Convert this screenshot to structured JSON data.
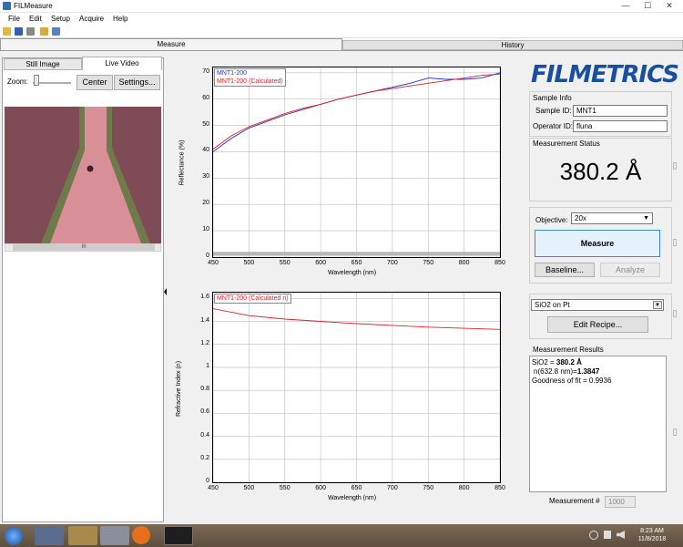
{
  "window": {
    "title": "FILMeasure",
    "controls": [
      "—",
      "☐",
      "✕"
    ]
  },
  "menu": [
    "File",
    "Edit",
    "Setup",
    "Acquire",
    "Help"
  ],
  "tabs": {
    "measure": "Measure",
    "history": "History"
  },
  "left_panel": {
    "tabs": {
      "still": "Still Image",
      "live": "Live Video"
    },
    "zoom_label": "Zoom:",
    "center_button": "Center",
    "settings_button": "Settings...",
    "scroll_grip": "III"
  },
  "charts": {
    "x_ticks": [
      "450",
      "500",
      "550",
      "600",
      "650",
      "700",
      "750",
      "800",
      "850"
    ],
    "reflectance": {
      "legend": [
        "MNT1-200",
        "MNT1-200 (Calculated)"
      ],
      "y_ticks": [
        "70",
        "60",
        "50",
        "40",
        "30",
        "20",
        "10",
        "0"
      ],
      "ylabel": "Reflectance (%)",
      "xlabel": "Wavelength (nm)"
    },
    "index": {
      "legend": [
        "MNT1-200 (Calculated n)"
      ],
      "y_ticks": [
        "1.6",
        "1.4",
        "1.2",
        "1",
        "0.8",
        "0.6",
        "0.4",
        "0.2",
        "0"
      ],
      "ylabel": "Refractive Index (n)",
      "xlabel": "Wavelength (nm)"
    }
  },
  "chart_data": [
    {
      "type": "line",
      "xlabel": "Wavelength (nm)",
      "ylabel": "Reflectance (%)",
      "xlim": [
        450,
        850
      ],
      "ylim": [
        0,
        72
      ],
      "grid": true,
      "legend_position": "top-left",
      "series": [
        {
          "name": "MNT1-200",
          "color": "#1f2fd6",
          "x": [
            450,
            475,
            500,
            525,
            550,
            575,
            600,
            625,
            650,
            675,
            700,
            725,
            750,
            775,
            800,
            825,
            850
          ],
          "y": [
            40,
            45,
            49,
            51.5,
            54,
            56,
            58,
            60,
            61.5,
            63,
            64.5,
            66,
            68,
            67.5,
            67.5,
            68,
            70
          ]
        },
        {
          "name": "MNT1-200 (Calculated)",
          "color": "#e0202a",
          "x": [
            450,
            475,
            500,
            525,
            550,
            575,
            600,
            625,
            650,
            675,
            700,
            725,
            750,
            775,
            800,
            825,
            850
          ],
          "y": [
            41,
            46,
            49.5,
            52,
            54.5,
            56.5,
            58,
            60,
            61.5,
            63,
            64,
            65,
            66,
            67,
            68,
            69,
            69.5
          ]
        }
      ]
    },
    {
      "type": "line",
      "xlabel": "Wavelength (nm)",
      "ylabel": "Refractive Index (n)",
      "xlim": [
        450,
        850
      ],
      "ylim": [
        0,
        1.65
      ],
      "grid": true,
      "legend_position": "top-left",
      "series": [
        {
          "name": "MNT1-200 (Calculated n)",
          "color": "#e0202a",
          "x": [
            450,
            500,
            550,
            600,
            650,
            700,
            750,
            800,
            850
          ],
          "y": [
            1.51,
            1.45,
            1.42,
            1.4,
            1.38,
            1.365,
            1.35,
            1.34,
            1.33
          ]
        }
      ]
    }
  ],
  "logo_text": "FILMETRICS",
  "sample_info": {
    "title": "Sample Info",
    "sample_id_label": "Sample ID:",
    "sample_id": "MNT1",
    "operator_id_label": "Operator ID:",
    "operator_id": "fluna"
  },
  "measurement_status": {
    "title": "Measurement Status",
    "value": "380.2 Å"
  },
  "controls": {
    "objective_label": "Objective:",
    "objective_value": "20x",
    "measure_button": "Measure",
    "baseline_button": "Baseline...",
    "analyze_button": "Analyze"
  },
  "recipe": {
    "selected": "SiO2 on Pt",
    "edit_button": "Edit Recipe..."
  },
  "results": {
    "title": "Measurement Results",
    "line1_prefix": "SiO2 = ",
    "line1_value": "380.2 Å",
    "line2_prefix": "n(632.8 nm)=",
    "line2_value": "1.3847",
    "line3": "Goodness of fit = 0.9936",
    "measurement_label": "Measurement #",
    "measurement_number": "1000"
  },
  "taskbar": {
    "time": "8:23 AM",
    "date": "11/8/2018"
  }
}
